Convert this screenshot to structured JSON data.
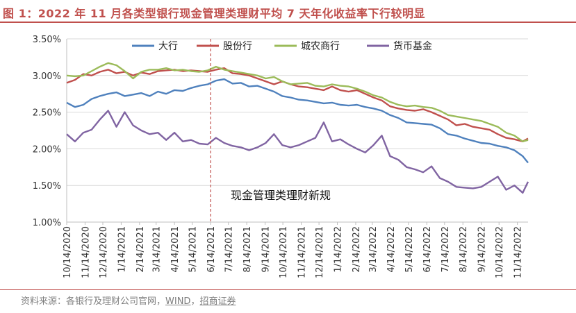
{
  "header": {
    "title": "图 1：2022 年 11 月各类型银行现金管理类理财平均 7 天年化收益率下行较明显"
  },
  "footer": {
    "source_prefix": "资料来源：各银行及理财公司官网，",
    "source_wind": "WIND",
    "source_sep": "，",
    "source_cms": "招商证券"
  },
  "colors": {
    "accent": "#c0504d",
    "big_bank": "#4f81bd",
    "joint_stock": "#c0504d",
    "rural": "#9bbb59",
    "money_fund": "#8064a2"
  },
  "chart_data": {
    "type": "line",
    "title": "",
    "xlabel": "",
    "ylabel": "",
    "ylim": [
      1.0,
      3.5
    ],
    "yticks": [
      "1.00%",
      "1.50%",
      "2.00%",
      "2.50%",
      "3.00%",
      "3.50%"
    ],
    "x_tick_labels": [
      "10/14/2020",
      "11/14/2020",
      "12/14/2020",
      "1/14/2021",
      "2/14/2021",
      "3/14/2021",
      "4/14/2021",
      "5/14/2021",
      "6/14/2021",
      "7/14/2021",
      "8/14/2021",
      "9/14/2021",
      "10/14/2021",
      "11/14/2021",
      "12/14/2021",
      "1/14/2022",
      "2/14/2022",
      "3/14/2022",
      "4/14/2022",
      "5/14/2022",
      "6/14/2022",
      "7/14/2022",
      "8/14/2022",
      "9/14/2022",
      "10/14/2022",
      "11/14/2022"
    ],
    "x_start": "10/14/2020",
    "x_end": "12/2/2022",
    "grid": "horizontal",
    "legend_position": "top",
    "annotation": {
      "text": "现金管理类理财新规",
      "date": "6/14/2021"
    },
    "series": [
      {
        "name": "大行",
        "color": "#4f81bd",
        "points": [
          [
            "10/14/2020",
            2.63
          ],
          [
            "10/28/2020",
            2.57
          ],
          [
            "11/11/2020",
            2.6
          ],
          [
            "11/25/2020",
            2.68
          ],
          [
            "12/9/2020",
            2.72
          ],
          [
            "12/23/2020",
            2.75
          ],
          [
            "1/6/2021",
            2.77
          ],
          [
            "1/20/2021",
            2.72
          ],
          [
            "2/3/2021",
            2.74
          ],
          [
            "2/17/2021",
            2.76
          ],
          [
            "3/3/2021",
            2.72
          ],
          [
            "3/17/2021",
            2.78
          ],
          [
            "3/31/2021",
            2.75
          ],
          [
            "4/14/2021",
            2.8
          ],
          [
            "4/28/2021",
            2.79
          ],
          [
            "5/12/2021",
            2.83
          ],
          [
            "5/26/2021",
            2.86
          ],
          [
            "6/9/2021",
            2.88
          ],
          [
            "6/23/2021",
            2.93
          ],
          [
            "7/7/2021",
            2.95
          ],
          [
            "7/21/2021",
            2.89
          ],
          [
            "8/4/2021",
            2.9
          ],
          [
            "8/18/2021",
            2.85
          ],
          [
            "9/1/2021",
            2.86
          ],
          [
            "9/15/2021",
            2.82
          ],
          [
            "9/29/2021",
            2.78
          ],
          [
            "10/13/2021",
            2.72
          ],
          [
            "10/27/2021",
            2.7
          ],
          [
            "11/10/2021",
            2.67
          ],
          [
            "11/24/2021",
            2.66
          ],
          [
            "12/8/2021",
            2.64
          ],
          [
            "12/22/2021",
            2.62
          ],
          [
            "1/5/2022",
            2.63
          ],
          [
            "1/19/2022",
            2.6
          ],
          [
            "2/2/2022",
            2.59
          ],
          [
            "2/16/2022",
            2.6
          ],
          [
            "3/2/2022",
            2.57
          ],
          [
            "3/16/2022",
            2.55
          ],
          [
            "3/30/2022",
            2.52
          ],
          [
            "4/13/2022",
            2.46
          ],
          [
            "4/27/2022",
            2.42
          ],
          [
            "5/11/2022",
            2.36
          ],
          [
            "5/25/2022",
            2.35
          ],
          [
            "6/8/2022",
            2.34
          ],
          [
            "6/22/2022",
            2.33
          ],
          [
            "7/6/2022",
            2.28
          ],
          [
            "7/20/2022",
            2.2
          ],
          [
            "8/3/2022",
            2.18
          ],
          [
            "8/17/2022",
            2.14
          ],
          [
            "8/31/2022",
            2.11
          ],
          [
            "9/14/2022",
            2.08
          ],
          [
            "9/28/2022",
            2.07
          ],
          [
            "10/12/2022",
            2.04
          ],
          [
            "10/26/2022",
            2.02
          ],
          [
            "11/9/2022",
            1.98
          ],
          [
            "11/23/2022",
            1.9
          ],
          [
            "12/2/2022",
            1.81
          ]
        ]
      },
      {
        "name": "股份行",
        "color": "#c0504d",
        "points": [
          [
            "10/14/2020",
            2.9
          ],
          [
            "10/28/2020",
            2.94
          ],
          [
            "11/11/2020",
            3.02
          ],
          [
            "11/25/2020",
            3.0
          ],
          [
            "12/9/2020",
            3.05
          ],
          [
            "12/23/2020",
            3.08
          ],
          [
            "1/6/2021",
            3.03
          ],
          [
            "1/20/2021",
            3.05
          ],
          [
            "2/3/2021",
            3.0
          ],
          [
            "2/17/2021",
            3.04
          ],
          [
            "3/3/2021",
            3.02
          ],
          [
            "3/17/2021",
            3.06
          ],
          [
            "3/31/2021",
            3.07
          ],
          [
            "4/14/2021",
            3.08
          ],
          [
            "4/28/2021",
            3.06
          ],
          [
            "5/12/2021",
            3.07
          ],
          [
            "5/26/2021",
            3.06
          ],
          [
            "6/9/2021",
            3.05
          ],
          [
            "6/23/2021",
            3.08
          ],
          [
            "7/7/2021",
            3.1
          ],
          [
            "7/21/2021",
            3.03
          ],
          [
            "8/4/2021",
            3.02
          ],
          [
            "8/18/2021",
            3.0
          ],
          [
            "9/1/2021",
            2.96
          ],
          [
            "9/15/2021",
            2.92
          ],
          [
            "9/29/2021",
            2.88
          ],
          [
            "10/13/2021",
            2.92
          ],
          [
            "10/27/2021",
            2.88
          ],
          [
            "11/10/2021",
            2.85
          ],
          [
            "11/24/2021",
            2.84
          ],
          [
            "12/8/2021",
            2.82
          ],
          [
            "12/22/2021",
            2.8
          ],
          [
            "1/5/2022",
            2.85
          ],
          [
            "1/19/2022",
            2.8
          ],
          [
            "2/2/2022",
            2.78
          ],
          [
            "2/16/2022",
            2.8
          ],
          [
            "3/2/2022",
            2.75
          ],
          [
            "3/16/2022",
            2.7
          ],
          [
            "3/30/2022",
            2.66
          ],
          [
            "4/13/2022",
            2.58
          ],
          [
            "4/27/2022",
            2.55
          ],
          [
            "5/11/2022",
            2.53
          ],
          [
            "5/25/2022",
            2.52
          ],
          [
            "6/8/2022",
            2.54
          ],
          [
            "6/22/2022",
            2.5
          ],
          [
            "7/6/2022",
            2.45
          ],
          [
            "7/20/2022",
            2.4
          ],
          [
            "8/3/2022",
            2.32
          ],
          [
            "8/17/2022",
            2.34
          ],
          [
            "8/31/2022",
            2.3
          ],
          [
            "9/14/2022",
            2.28
          ],
          [
            "9/28/2022",
            2.26
          ],
          [
            "10/12/2022",
            2.2
          ],
          [
            "10/26/2022",
            2.15
          ],
          [
            "11/9/2022",
            2.13
          ],
          [
            "11/23/2022",
            2.1
          ],
          [
            "12/2/2022",
            2.14
          ]
        ]
      },
      {
        "name": "城农商行",
        "color": "#9bbb59",
        "points": [
          [
            "10/14/2020",
            3.0
          ],
          [
            "10/28/2020",
            2.99
          ],
          [
            "11/11/2020",
            3.0
          ],
          [
            "11/25/2020",
            3.06
          ],
          [
            "12/9/2020",
            3.12
          ],
          [
            "12/23/2020",
            3.17
          ],
          [
            "1/6/2021",
            3.14
          ],
          [
            "1/20/2021",
            3.06
          ],
          [
            "2/3/2021",
            2.96
          ],
          [
            "2/17/2021",
            3.05
          ],
          [
            "3/3/2021",
            3.08
          ],
          [
            "3/17/2021",
            3.08
          ],
          [
            "3/31/2021",
            3.1
          ],
          [
            "4/14/2021",
            3.07
          ],
          [
            "4/28/2021",
            3.08
          ],
          [
            "5/12/2021",
            3.06
          ],
          [
            "5/26/2021",
            3.05
          ],
          [
            "6/9/2021",
            3.07
          ],
          [
            "6/23/2021",
            3.12
          ],
          [
            "7/7/2021",
            3.08
          ],
          [
            "7/21/2021",
            3.06
          ],
          [
            "8/4/2021",
            3.04
          ],
          [
            "8/18/2021",
            3.02
          ],
          [
            "9/1/2021",
            3.0
          ],
          [
            "9/15/2021",
            2.96
          ],
          [
            "9/29/2021",
            2.98
          ],
          [
            "10/13/2021",
            2.92
          ],
          [
            "10/27/2021",
            2.88
          ],
          [
            "11/10/2021",
            2.89
          ],
          [
            "11/24/2021",
            2.9
          ],
          [
            "12/8/2021",
            2.86
          ],
          [
            "12/22/2021",
            2.85
          ],
          [
            "1/5/2022",
            2.88
          ],
          [
            "1/19/2022",
            2.86
          ],
          [
            "2/2/2022",
            2.85
          ],
          [
            "2/16/2022",
            2.82
          ],
          [
            "3/2/2022",
            2.78
          ],
          [
            "3/16/2022",
            2.73
          ],
          [
            "3/30/2022",
            2.7
          ],
          [
            "4/13/2022",
            2.64
          ],
          [
            "4/27/2022",
            2.6
          ],
          [
            "5/11/2022",
            2.58
          ],
          [
            "5/25/2022",
            2.59
          ],
          [
            "6/8/2022",
            2.57
          ],
          [
            "6/22/2022",
            2.56
          ],
          [
            "7/6/2022",
            2.52
          ],
          [
            "7/20/2022",
            2.46
          ],
          [
            "8/3/2022",
            2.44
          ],
          [
            "8/17/2022",
            2.42
          ],
          [
            "8/31/2022",
            2.4
          ],
          [
            "9/14/2022",
            2.38
          ],
          [
            "9/28/2022",
            2.34
          ],
          [
            "10/12/2022",
            2.3
          ],
          [
            "10/26/2022",
            2.22
          ],
          [
            "11/9/2022",
            2.18
          ],
          [
            "11/23/2022",
            2.1
          ],
          [
            "12/2/2022",
            2.12
          ]
        ]
      },
      {
        "name": "货币基金",
        "color": "#8064a2",
        "points": [
          [
            "10/14/2020",
            2.2
          ],
          [
            "10/28/2020",
            2.1
          ],
          [
            "11/11/2020",
            2.22
          ],
          [
            "11/25/2020",
            2.26
          ],
          [
            "12/9/2020",
            2.4
          ],
          [
            "12/23/2020",
            2.52
          ],
          [
            "1/6/2021",
            2.3
          ],
          [
            "1/20/2021",
            2.5
          ],
          [
            "2/3/2021",
            2.32
          ],
          [
            "2/17/2021",
            2.25
          ],
          [
            "3/3/2021",
            2.2
          ],
          [
            "3/17/2021",
            2.22
          ],
          [
            "3/31/2021",
            2.12
          ],
          [
            "4/14/2021",
            2.22
          ],
          [
            "4/28/2021",
            2.1
          ],
          [
            "5/12/2021",
            2.12
          ],
          [
            "5/26/2021",
            2.07
          ],
          [
            "6/9/2021",
            2.06
          ],
          [
            "6/23/2021",
            2.15
          ],
          [
            "7/7/2021",
            2.08
          ],
          [
            "7/21/2021",
            2.04
          ],
          [
            "8/4/2021",
            2.02
          ],
          [
            "8/18/2021",
            1.98
          ],
          [
            "9/1/2021",
            2.02
          ],
          [
            "9/15/2021",
            2.08
          ],
          [
            "9/29/2021",
            2.2
          ],
          [
            "10/13/2021",
            2.05
          ],
          [
            "10/27/2021",
            2.02
          ],
          [
            "11/10/2021",
            2.05
          ],
          [
            "11/24/2021",
            2.1
          ],
          [
            "12/8/2021",
            2.15
          ],
          [
            "12/22/2021",
            2.36
          ],
          [
            "1/5/2022",
            2.1
          ],
          [
            "1/19/2022",
            2.13
          ],
          [
            "2/2/2022",
            2.06
          ],
          [
            "2/16/2022",
            2.0
          ],
          [
            "3/2/2022",
            1.95
          ],
          [
            "3/16/2022",
            2.05
          ],
          [
            "3/30/2022",
            2.18
          ],
          [
            "4/13/2022",
            1.9
          ],
          [
            "4/27/2022",
            1.85
          ],
          [
            "5/11/2022",
            1.75
          ],
          [
            "5/25/2022",
            1.72
          ],
          [
            "6/8/2022",
            1.68
          ],
          [
            "6/22/2022",
            1.76
          ],
          [
            "7/6/2022",
            1.6
          ],
          [
            "7/20/2022",
            1.55
          ],
          [
            "8/3/2022",
            1.48
          ],
          [
            "8/17/2022",
            1.47
          ],
          [
            "8/31/2022",
            1.46
          ],
          [
            "9/14/2022",
            1.48
          ],
          [
            "9/28/2022",
            1.55
          ],
          [
            "10/12/2022",
            1.62
          ],
          [
            "10/26/2022",
            1.44
          ],
          [
            "11/9/2022",
            1.5
          ],
          [
            "11/23/2022",
            1.4
          ],
          [
            "12/2/2022",
            1.55
          ]
        ]
      }
    ]
  }
}
